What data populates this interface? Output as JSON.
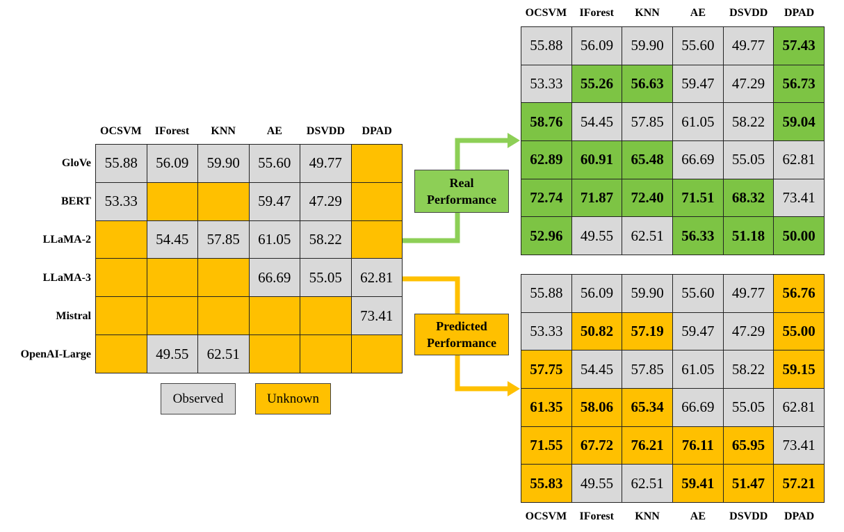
{
  "columns": [
    "OCSVM",
    "IForest",
    "KNN",
    "AE",
    "DSVDD",
    "DPAD"
  ],
  "rows": [
    "GloVe",
    "BERT",
    "LLaMA-2",
    "LLaMA-3",
    "Mistral",
    "OpenAI-Large"
  ],
  "colors": {
    "observed": "#d9d9d9",
    "unknown": "#ffc000",
    "real": "#7dc444",
    "predicted": "#ffc000",
    "green_arrow": "#8dcf56",
    "yellow_arrow": "#ffc000"
  },
  "input_matrix": [
    [
      "55.88",
      "56.09",
      "59.90",
      "55.60",
      "49.77",
      ""
    ],
    [
      "53.33",
      "",
      "",
      "59.47",
      "47.29",
      ""
    ],
    [
      "",
      "54.45",
      "57.85",
      "61.05",
      "58.22",
      ""
    ],
    [
      "",
      "",
      "",
      "66.69",
      "55.05",
      "62.81"
    ],
    [
      "",
      "",
      "",
      "",
      "",
      "73.41"
    ],
    [
      "",
      "49.55",
      "62.51",
      "",
      "",
      ""
    ]
  ],
  "real_matrix": [
    [
      "55.88",
      "56.09",
      "59.90",
      "55.60",
      "49.77",
      "57.43"
    ],
    [
      "53.33",
      "55.26",
      "56.63",
      "59.47",
      "47.29",
      "56.73"
    ],
    [
      "58.76",
      "54.45",
      "57.85",
      "61.05",
      "58.22",
      "59.04"
    ],
    [
      "62.89",
      "60.91",
      "65.48",
      "66.69",
      "55.05",
      "62.81"
    ],
    [
      "72.74",
      "71.87",
      "72.40",
      "71.51",
      "68.32",
      "73.41"
    ],
    [
      "52.96",
      "49.55",
      "62.51",
      "56.33",
      "51.18",
      "50.00"
    ]
  ],
  "predicted_matrix": [
    [
      "55.88",
      "56.09",
      "59.90",
      "55.60",
      "49.77",
      "56.76"
    ],
    [
      "53.33",
      "50.82",
      "57.19",
      "59.47",
      "47.29",
      "55.00"
    ],
    [
      "57.75",
      "54.45",
      "57.85",
      "61.05",
      "58.22",
      "59.15"
    ],
    [
      "61.35",
      "58.06",
      "65.34",
      "66.69",
      "55.05",
      "62.81"
    ],
    [
      "71.55",
      "67.72",
      "76.21",
      "76.11",
      "65.95",
      "73.41"
    ],
    [
      "55.83",
      "49.55",
      "62.51",
      "59.41",
      "51.47",
      "57.21"
    ]
  ],
  "labels": {
    "real": [
      "Real",
      "Performance"
    ],
    "predicted": [
      "Predicted",
      "Performance"
    ]
  },
  "legend": {
    "observed": "Observed",
    "unknown": "Unknown"
  }
}
